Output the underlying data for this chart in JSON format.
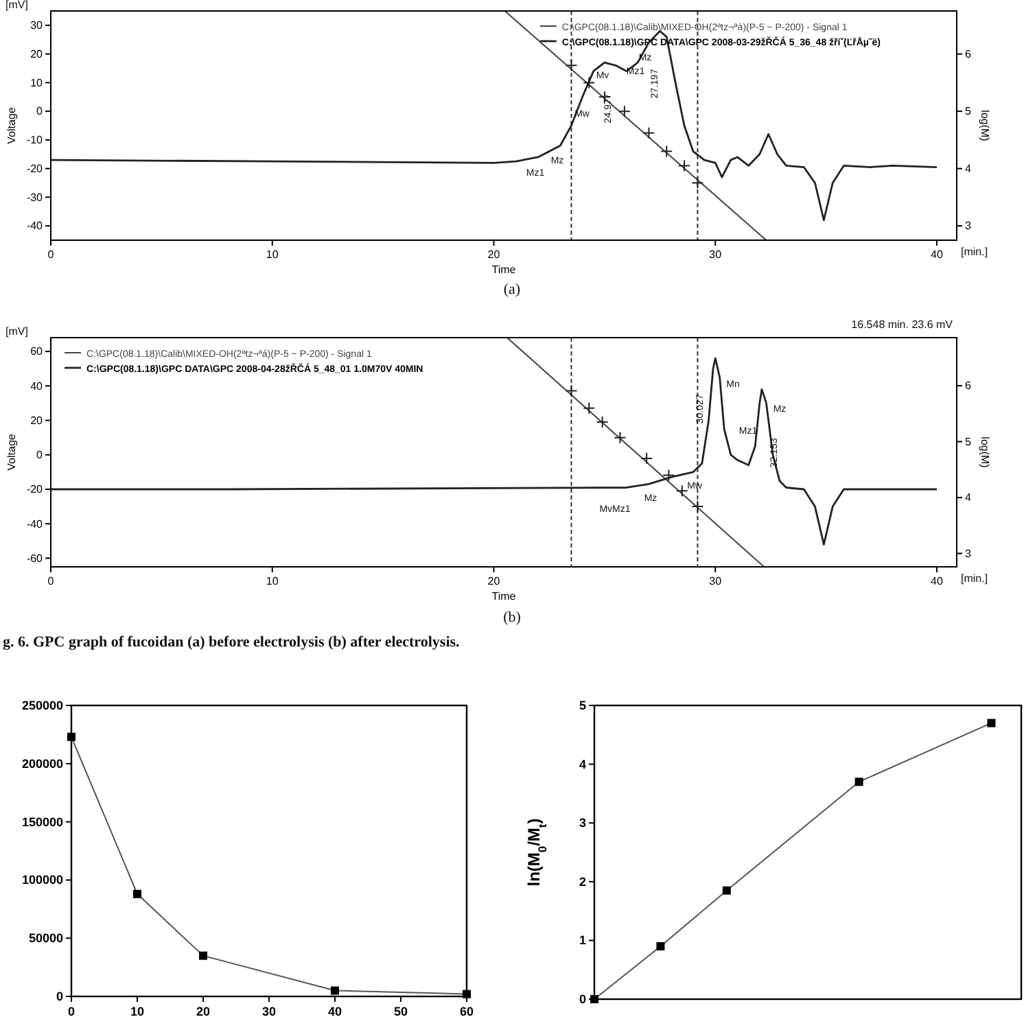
{
  "chart_data": [
    {
      "type": "line",
      "xlabel": "Time",
      "ylabel": "Voltage",
      "y2label": "log(M)",
      "xlim": [
        0,
        40.9
      ],
      "xticks": [
        0,
        10,
        20,
        30,
        40
      ],
      "ylim": [
        -45,
        35
      ],
      "yticks": [
        -40,
        -30,
        -20,
        -10,
        0,
        10,
        20,
        30
      ],
      "y2lim": [
        2.75,
        6.75
      ],
      "y2ticks": [
        3,
        4,
        5,
        6
      ],
      "legend": "top right",
      "grid": false,
      "series": [
        {
          "name": "C:\\GPC(08.1.18)\\Calib\\MIXED-OH(2ªtz¬ªá)(P-5 ~ P-200) - Signal 1",
          "type": "line",
          "axis": "y2",
          "color": "#444444",
          "x": [
            20.5,
            32.3
          ],
          "values": [
            6.75,
            2.75
          ]
        },
        {
          "type": "scatter",
          "axis": "y2",
          "marker": "cross",
          "color": "#222222",
          "x": [
            23.5,
            24.3,
            25.0,
            25.9,
            27.0,
            27.8,
            28.6,
            29.2
          ],
          "values": [
            5.8,
            5.5,
            5.25,
            5.0,
            4.62,
            4.3,
            4.05,
            3.75
          ]
        },
        {
          "name": "C:\\GPC(08.1.18)\\GPC DATA\\GPC 2008-03-29žŘČÁ 5_36_48 žříˇ(ĽřÅµ˝ë)",
          "type": "line",
          "color": "#222222",
          "x": [
            0,
            10,
            20,
            21,
            22,
            23,
            23.5,
            24,
            24.5,
            25,
            25.5,
            26,
            26.5,
            27,
            27.5,
            27.8,
            28.2,
            28.6,
            29,
            29.5,
            30,
            30.3,
            30.7,
            31,
            31.5,
            32,
            32.4,
            32.8,
            33.2,
            34,
            34.5,
            34.9,
            35.3,
            35.8,
            37,
            38,
            40
          ],
          "values": [
            -17,
            -17.5,
            -18,
            -17.5,
            -16,
            -12,
            -5,
            5,
            14,
            17,
            16,
            14,
            17,
            24,
            28,
            26,
            10,
            -5,
            -14,
            -17,
            -18,
            -23,
            -17,
            -16,
            -19,
            -15,
            -8,
            -15,
            -19,
            -19.5,
            -25,
            -38,
            -25,
            -19,
            -19.5,
            -19,
            -19.5
          ]
        }
      ],
      "ref_lines": [
        {
          "axis": "x",
          "value": 23.5,
          "line_style": "dashed"
        },
        {
          "axis": "x",
          "value": 29.2,
          "line_style": "dashed"
        }
      ],
      "annotations": [
        "[mV]",
        "[min.]",
        "(a)",
        "Mz1",
        "Mz",
        "Mw",
        "Mv",
        "24.977",
        "Mz1",
        "Mz",
        "27.197"
      ]
    },
    {
      "type": "line",
      "xlabel": "Time",
      "ylabel": "Voltage",
      "y2label": "log(M)",
      "xlim": [
        0,
        40.9
      ],
      "xticks": [
        0,
        10,
        20,
        30,
        40
      ],
      "ylim": [
        -65,
        68
      ],
      "yticks": [
        -60,
        -40,
        -20,
        0,
        20,
        40,
        60
      ],
      "y2lim": [
        2.76,
        6.86
      ],
      "y2ticks": [
        3,
        4,
        5,
        6
      ],
      "legend": "top left",
      "grid": false,
      "series": [
        {
          "name": "C:\\GPC(08.1.18)\\Calib\\MIXED-OH(2ªtz¬ªá)(P-5 ~ P-200) - Signal 1",
          "type": "line",
          "axis": "y2",
          "color": "#444444",
          "x": [
            20.6,
            32.2
          ],
          "values": [
            6.86,
            2.76
          ]
        },
        {
          "type": "scatter",
          "axis": "y2",
          "marker": "cross",
          "color": "#222222",
          "x": [
            23.5,
            24.3,
            24.9,
            25.7,
            26.9,
            27.9,
            28.5,
            29.2
          ],
          "values": [
            5.91,
            5.6,
            5.35,
            5.07,
            4.7,
            4.4,
            4.12,
            3.84
          ]
        },
        {
          "name": "C:\\GPC(08.1.18)\\GPC DATA\\GPC 2008-04-28žŘČÁ 5_48_01 1.0M70V 40MIN",
          "type": "line",
          "color": "#222222",
          "x": [
            0,
            8,
            26,
            27,
            28,
            29,
            29.4,
            29.7,
            29.9,
            30,
            30.2,
            30.4,
            30.7,
            31,
            31.5,
            31.8,
            32,
            32.1,
            32.3,
            32.6,
            32.9,
            33.2,
            34,
            34.5,
            34.9,
            35.3,
            35.8,
            38,
            40
          ],
          "values": [
            -20,
            -20,
            -19,
            -17,
            -13,
            -10,
            -5,
            20,
            50,
            56,
            45,
            15,
            0,
            -3,
            -6,
            5,
            30,
            38,
            30,
            0,
            -15,
            -19,
            -20,
            -30,
            -52,
            -30,
            -20,
            -20,
            -20
          ]
        }
      ],
      "ref_lines": [
        {
          "axis": "x",
          "value": 23.5,
          "line_style": "dashed"
        },
        {
          "axis": "x",
          "value": 29.2,
          "line_style": "dashed"
        }
      ],
      "annotations": [
        "[mV]",
        "[min.]",
        "16.548 min.  23.6 mV",
        "(b)",
        "g. 6. GPC graph of fucoidan (a) before electrolysis (b) after electrolysis.",
        "MvMz1",
        "Mz",
        "Mw",
        "Mn",
        "30.027",
        "Mz1",
        "Mz",
        "32.153"
      ]
    },
    {
      "type": "line",
      "xlim": [
        0,
        60
      ],
      "xticks": [
        0,
        10,
        20,
        30,
        40,
        50,
        60
      ],
      "ylim": [
        0,
        250000
      ],
      "yticks": [
        0,
        50000,
        100000,
        150000,
        200000,
        250000
      ],
      "marker": "square",
      "grid": false,
      "series": [
        {
          "color": "#555555",
          "x": [
            0,
            10,
            20,
            40,
            60
          ],
          "values": [
            223000,
            88000,
            35000,
            5000,
            2000
          ]
        }
      ]
    },
    {
      "type": "line",
      "ylabel": "ln(M$_{0}$/M$_{t}$)",
      "categories": [
        null,
        null,
        null,
        null,
        null,
        null,
        null
      ],
      "ylim": [
        0,
        5
      ],
      "yticks": [
        0,
        1,
        2,
        3,
        4,
        5
      ],
      "tick_labels": "y",
      "marker": "square",
      "grid": false,
      "series": [
        {
          "color": "#555555",
          "values": [
            0,
            0.9,
            1.85,
            null,
            3.7,
            null,
            4.7
          ]
        }
      ]
    }
  ]
}
